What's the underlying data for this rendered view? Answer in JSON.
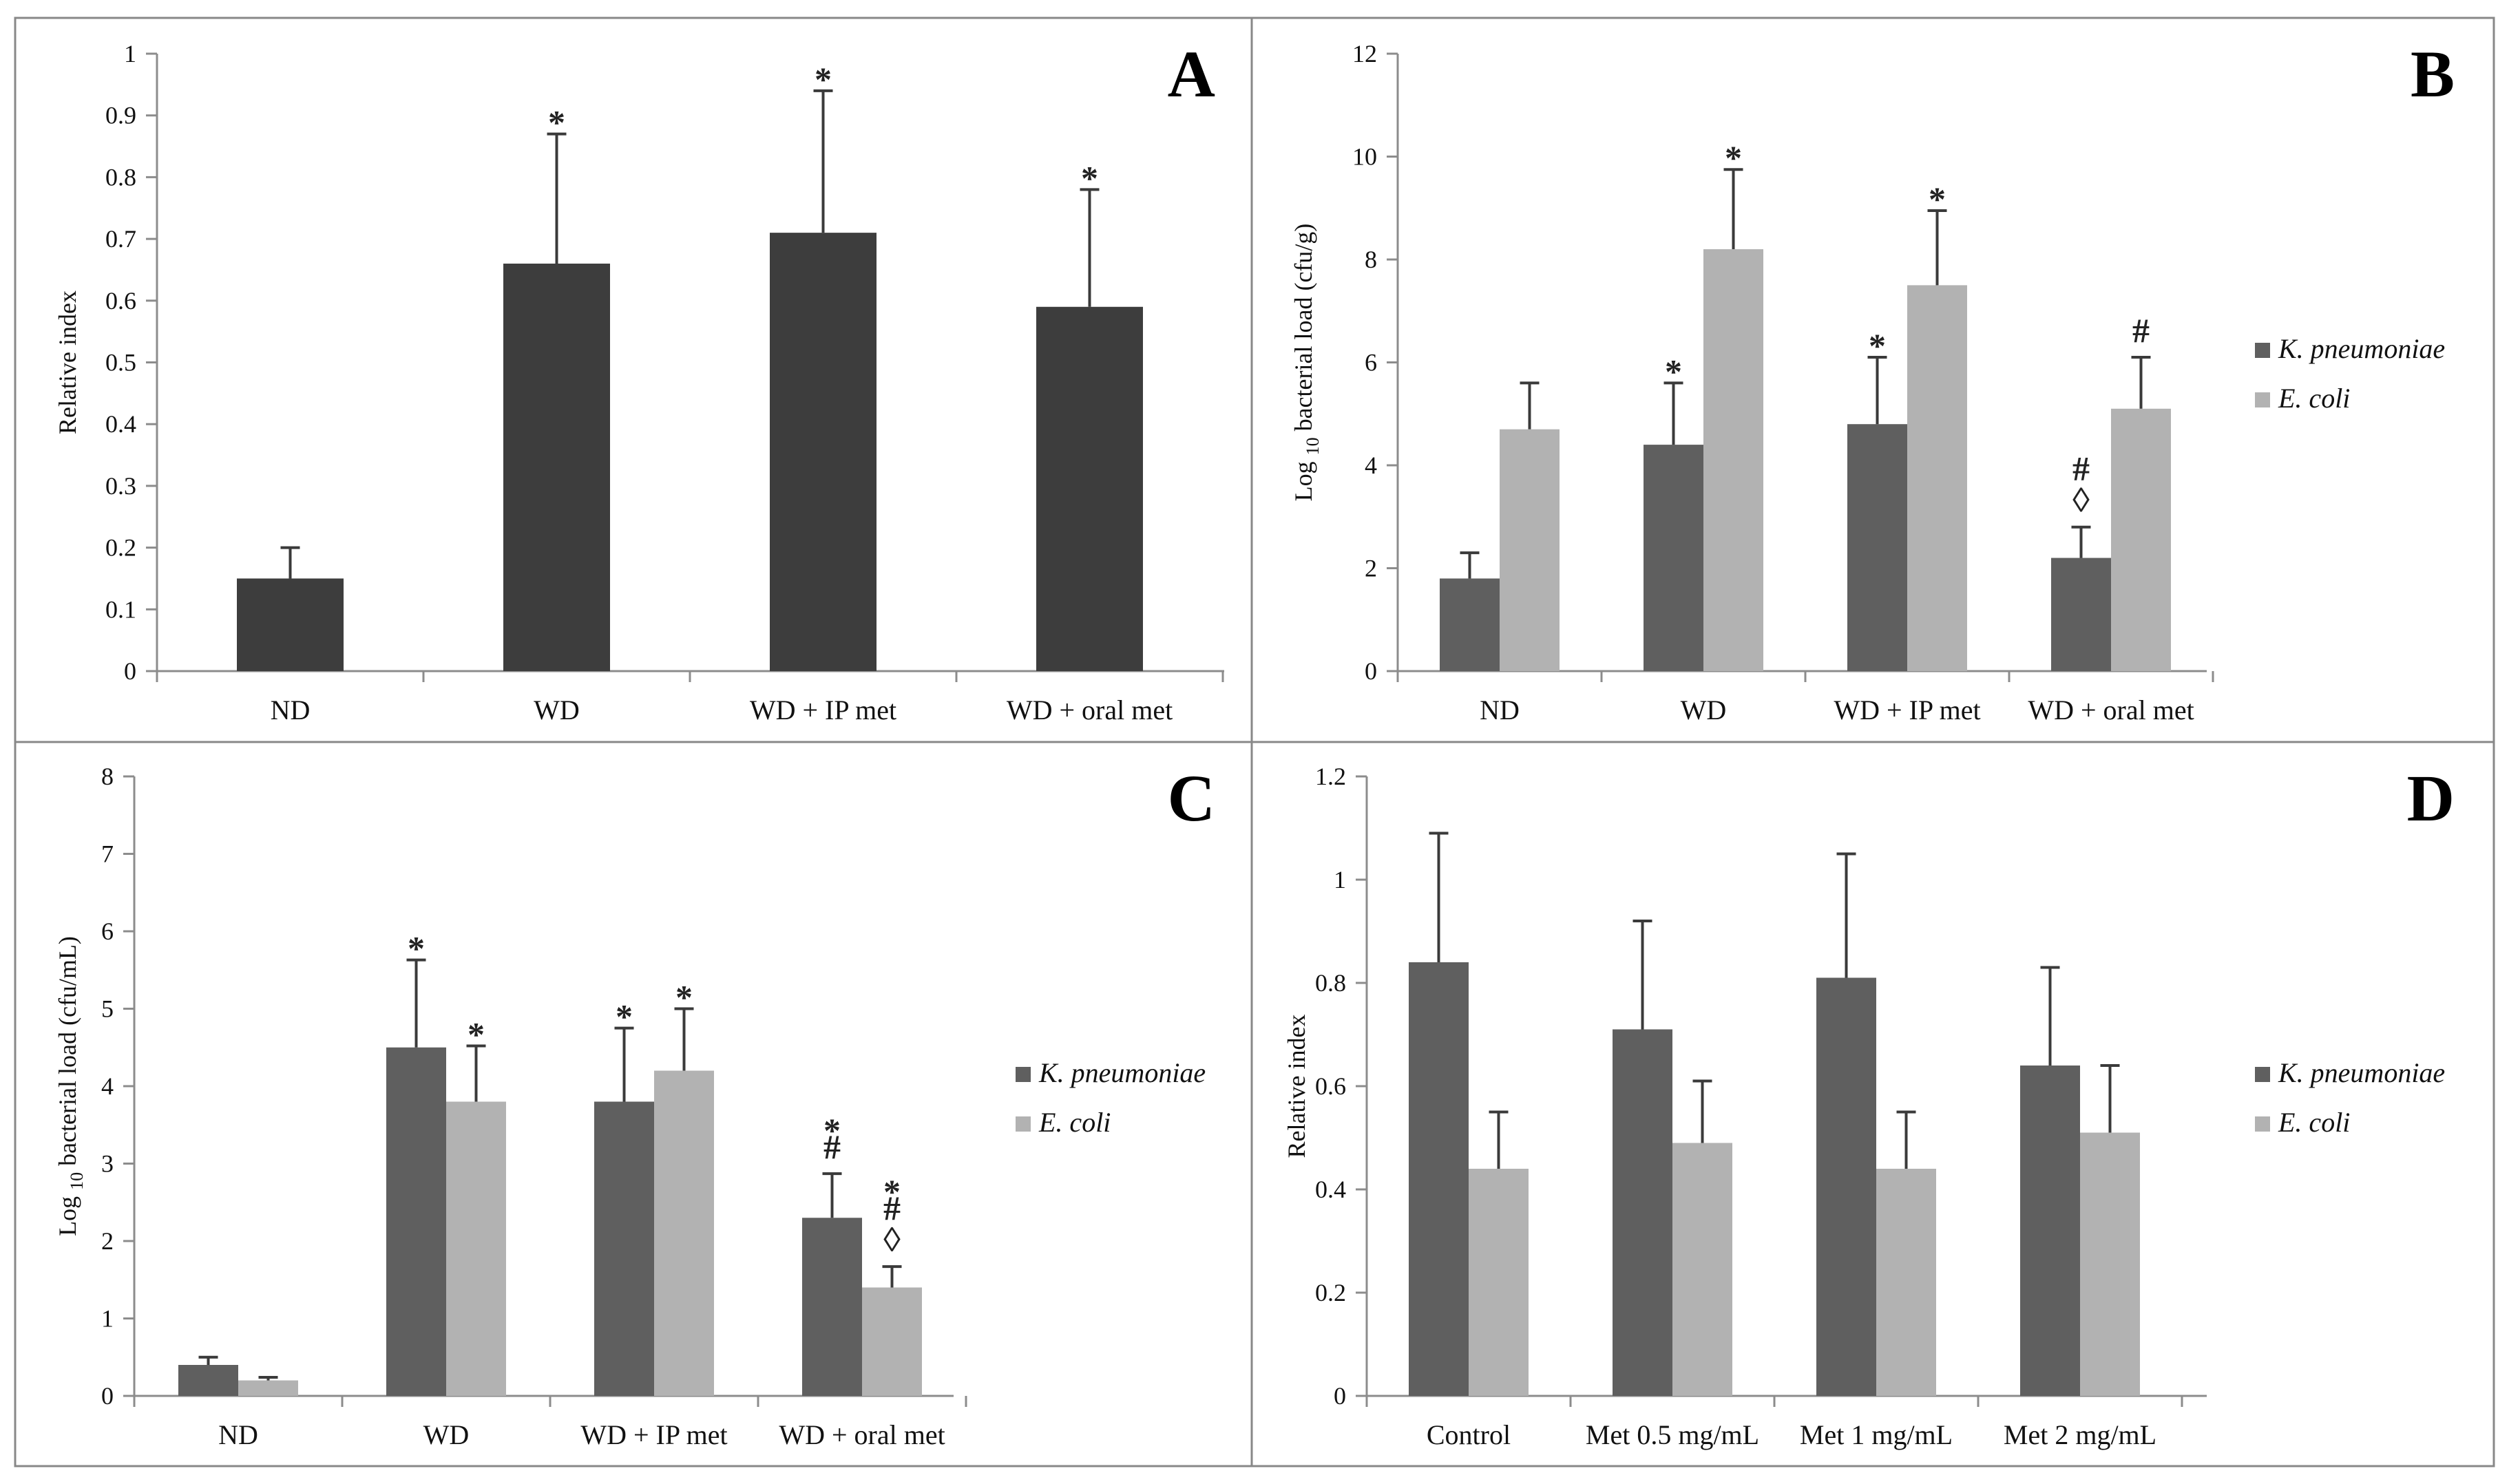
{
  "colors": {
    "single": "#3d3d3d",
    "kpneumoniae": "#5f5f5f",
    "ecoli": "#b2b2b2"
  },
  "chart_data": [
    {
      "id": "A",
      "type": "bar",
      "panel_label": "A",
      "ylabel": "Relative index",
      "categories": [
        "ND",
        "WD",
        "WD + IP met",
        "WD + oral met"
      ],
      "ylim": [
        0,
        1
      ],
      "yticks": [
        "0",
        "0.1",
        "0.2",
        "0.3",
        "0.4",
        "0.5",
        "0.6",
        "0.7",
        "0.8",
        "0.9",
        "1"
      ],
      "legend": null,
      "series": [
        {
          "name": "",
          "color_key": "single",
          "values": [
            0.15,
            0.66,
            0.71,
            0.59
          ],
          "errors": [
            0.05,
            0.21,
            0.23,
            0.19
          ],
          "annotations": [
            [],
            [
              "*"
            ],
            [
              "*"
            ],
            [
              "*"
            ]
          ]
        }
      ]
    },
    {
      "id": "B",
      "type": "bar",
      "panel_label": "B",
      "ylabel": "Log 10 bacterial load (cfu/g)",
      "categories": [
        "ND",
        "WD",
        "WD + IP met",
        "WD + oral met"
      ],
      "ylim": [
        0,
        12
      ],
      "yticks": [
        "0",
        "2",
        "4",
        "6",
        "8",
        "10",
        "12"
      ],
      "legend": "right",
      "series": [
        {
          "name": "K. pneumoniae",
          "color_key": "kpneumoniae",
          "values": [
            1.8,
            4.4,
            4.8,
            2.2
          ],
          "errors": [
            0.5,
            1.2,
            1.3,
            0.6
          ],
          "annotations": [
            [],
            [
              "*"
            ],
            [
              "*"
            ],
            [
              "◊",
              "#"
            ]
          ]
        },
        {
          "name": "E. coli",
          "color_key": "ecoli",
          "values": [
            4.7,
            8.2,
            7.5,
            5.1
          ],
          "errors": [
            0.9,
            1.55,
            1.45,
            1.0
          ],
          "annotations": [
            [],
            [
              "*"
            ],
            [
              "*"
            ],
            [
              "#"
            ]
          ]
        }
      ]
    },
    {
      "id": "C",
      "type": "bar",
      "panel_label": "C",
      "ylabel": "Log 10 bacterial load (cfu/mL)",
      "categories": [
        "ND",
        "WD",
        "WD + IP met",
        "WD + oral met"
      ],
      "ylim": [
        0,
        8
      ],
      "yticks": [
        "0",
        "1",
        "2",
        "3",
        "4",
        "5",
        "6",
        "7",
        "8"
      ],
      "legend": "right",
      "series": [
        {
          "name": "K. pneumoniae",
          "color_key": "kpneumoniae",
          "values": [
            0.4,
            4.5,
            3.8,
            2.3
          ],
          "errors": [
            0.1,
            1.13,
            0.95,
            0.57
          ],
          "annotations": [
            [],
            [
              "*"
            ],
            [
              "*"
            ],
            [
              "#",
              "*"
            ]
          ]
        },
        {
          "name": "E. coli",
          "color_key": "ecoli",
          "values": [
            0.2,
            3.8,
            4.2,
            1.4
          ],
          "errors": [
            0.04,
            0.72,
            0.8,
            0.27
          ],
          "annotations": [
            [],
            [
              "*"
            ],
            [
              "*"
            ],
            [
              "◊",
              "#",
              "*"
            ]
          ]
        }
      ]
    },
    {
      "id": "D",
      "type": "bar",
      "panel_label": "D",
      "ylabel": "Relative index",
      "categories": [
        "Control",
        "Met 0.5 mg/mL",
        "Met 1 mg/mL",
        "Met 2 mg/mL"
      ],
      "ylim": [
        0,
        1.2
      ],
      "yticks": [
        "0",
        "0.2",
        "0.4",
        "0.6",
        "0.8",
        "1",
        "1.2"
      ],
      "legend": "right",
      "series": [
        {
          "name": "K. pneumoniae",
          "color_key": "kpneumoniae",
          "values": [
            0.84,
            0.71,
            0.81,
            0.64
          ],
          "errors": [
            0.25,
            0.21,
            0.24,
            0.19
          ],
          "annotations": [
            [],
            [],
            [],
            []
          ]
        },
        {
          "name": "E. coli",
          "color_key": "ecoli",
          "values": [
            0.44,
            0.49,
            0.44,
            0.51
          ],
          "errors": [
            0.11,
            0.12,
            0.11,
            0.13
          ],
          "annotations": [
            [],
            [],
            [],
            []
          ]
        }
      ]
    }
  ]
}
